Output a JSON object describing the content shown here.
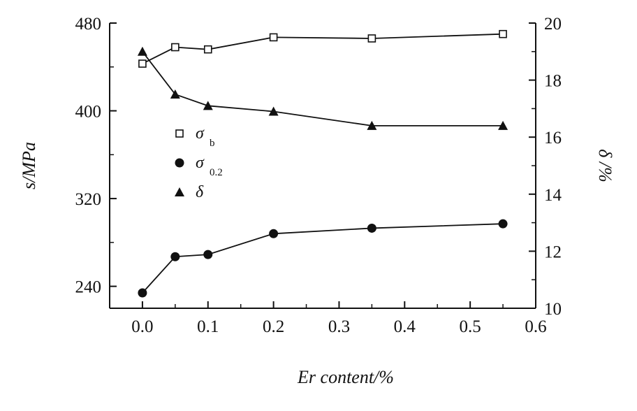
{
  "chart_data": {
    "type": "line",
    "title": "",
    "xlabel": "Er content/%",
    "ylabel_left": "s/MPa",
    "ylabel_right": "δ /%",
    "xlim": [
      -0.05,
      0.6
    ],
    "ylim_left": [
      220,
      480
    ],
    "ylim_right": [
      10,
      20
    ],
    "x_ticks": [
      "0.0",
      "0.1",
      "0.2",
      "0.3",
      "0.4",
      "0.5",
      "0.6"
    ],
    "y_left_ticks": [
      "240",
      "320",
      "400",
      "480"
    ],
    "y_right_ticks": [
      "10",
      "12",
      "14",
      "16",
      "18",
      "20"
    ],
    "x": [
      0.0,
      0.05,
      0.1,
      0.2,
      0.35,
      0.55
    ],
    "series": [
      {
        "name": "σ",
        "subscript": "b",
        "marker": "open-square",
        "axis": "left",
        "values": [
          443,
          458,
          456,
          467,
          466,
          470
        ]
      },
      {
        "name": "σ",
        "subscript": "0.2",
        "marker": "filled-circle",
        "axis": "left",
        "values": [
          234,
          267,
          269,
          288,
          293,
          297
        ]
      },
      {
        "name": "δ",
        "subscript": "",
        "marker": "filled-triangle",
        "axis": "right",
        "values": [
          19.0,
          17.5,
          17.1,
          16.9,
          16.4,
          16.4
        ]
      }
    ],
    "grid": false,
    "legend_placement": "center-left"
  }
}
